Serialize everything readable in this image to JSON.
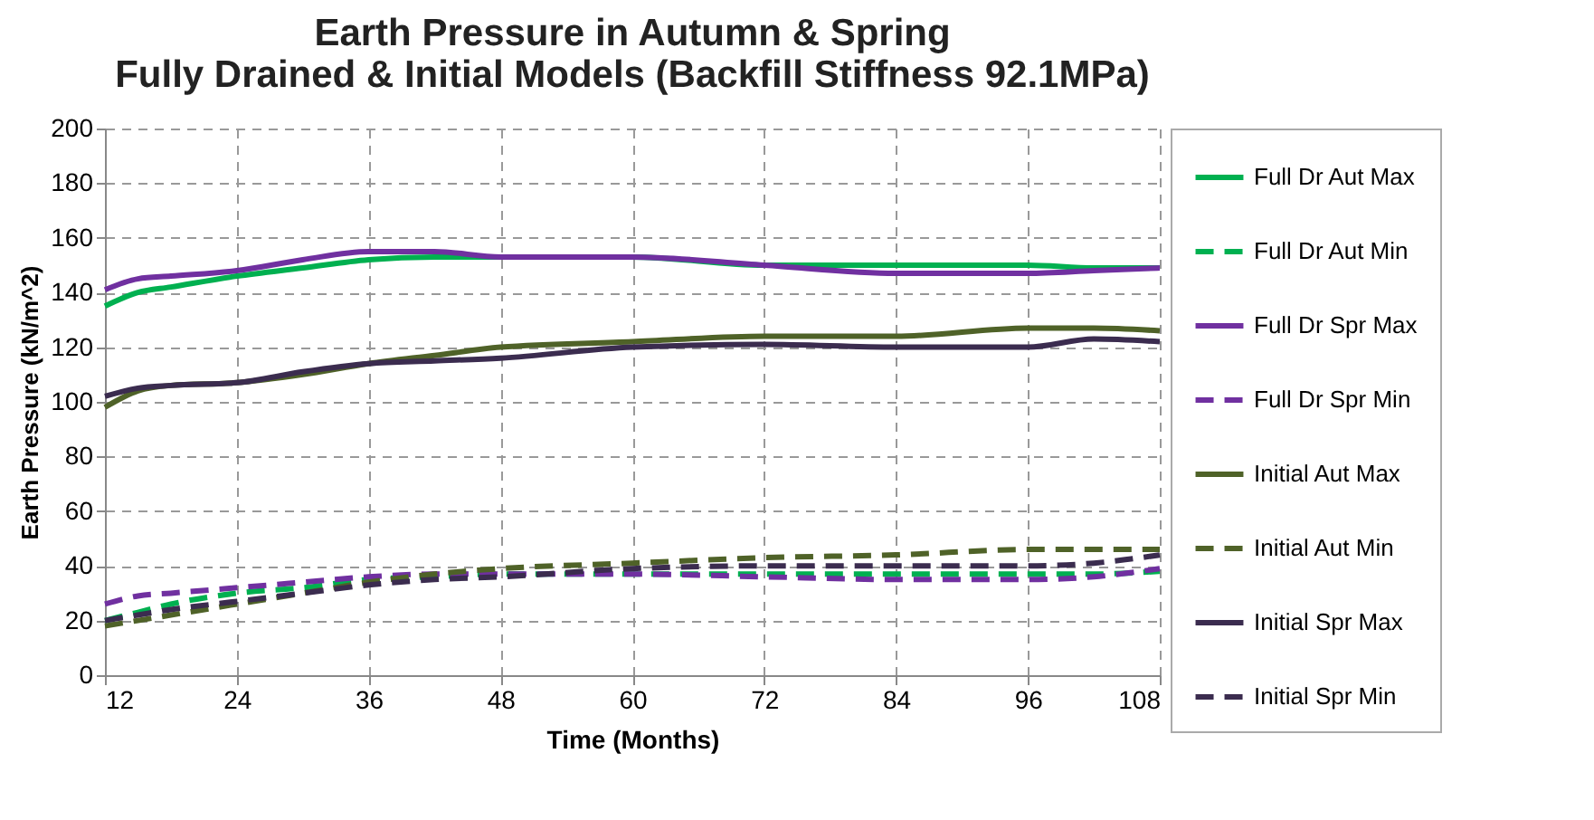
{
  "chart_data": {
    "type": "line",
    "title": "Earth Pressure in Autumn & Spring\nFully Drained & Initial Models (Backfill Stiffness 92.1MPa)",
    "xlabel": "Time  (Months)",
    "ylabel": "Earth Pressure (kN/m^2)",
    "x": [
      12,
      15,
      18,
      24,
      30,
      36,
      42,
      48,
      60,
      72,
      84,
      96,
      102,
      108
    ],
    "xlim": [
      12,
      108
    ],
    "xticks": [
      12,
      24,
      36,
      48,
      60,
      72,
      84,
      96,
      108
    ],
    "ylim": [
      0,
      200
    ],
    "yticks": [
      0,
      20,
      40,
      60,
      80,
      100,
      120,
      140,
      160,
      180,
      200
    ],
    "grid": true,
    "legend": "right",
    "series": [
      {
        "name": "Full Dr Aut Max",
        "color": "#00b050",
        "line_style": "solid",
        "values": [
          135,
          140,
          142,
          146,
          149,
          152,
          153,
          153,
          153,
          150,
          150,
          150,
          149,
          149
        ]
      },
      {
        "name": "Full Dr Aut Min",
        "color": "#00b050",
        "line_style": "dashed",
        "values": [
          20,
          23,
          26,
          30,
          32,
          35,
          36,
          37,
          37,
          37,
          37,
          37,
          37,
          38
        ]
      },
      {
        "name": "Full Dr Spr Max",
        "color": "#7030a0",
        "line_style": "solid",
        "values": [
          141,
          145,
          146,
          148,
          152,
          155,
          155,
          153,
          153,
          150,
          147,
          147,
          148,
          149
        ]
      },
      {
        "name": "Full Dr Spr Min",
        "color": "#7030a0",
        "line_style": "dashed",
        "values": [
          26,
          29,
          30,
          32,
          34,
          36,
          37,
          37,
          37,
          36,
          35,
          35,
          36,
          39
        ]
      },
      {
        "name": "Initial Aut Max",
        "color": "#4f6228",
        "line_style": "solid",
        "values": [
          98,
          104,
          106,
          107,
          110,
          114,
          117,
          120,
          122,
          124,
          124,
          127,
          127,
          126
        ]
      },
      {
        "name": "Initial Aut Min",
        "color": "#4f6228",
        "line_style": "dashed",
        "values": [
          18,
          20,
          22,
          26,
          30,
          34,
          37,
          39,
          41,
          43,
          44,
          46,
          46,
          46
        ]
      },
      {
        "name": "Initial Spr Max",
        "color": "#3b2c4f",
        "line_style": "solid",
        "values": [
          102,
          105,
          106,
          107,
          111,
          114,
          115,
          116,
          120,
          121,
          120,
          120,
          123,
          122
        ]
      },
      {
        "name": "Initial Spr Min",
        "color": "#3b2c4f",
        "line_style": "dashed",
        "values": [
          20,
          22,
          24,
          27,
          30,
          33,
          35,
          36,
          39,
          40,
          40,
          40,
          41,
          44
        ]
      }
    ]
  }
}
